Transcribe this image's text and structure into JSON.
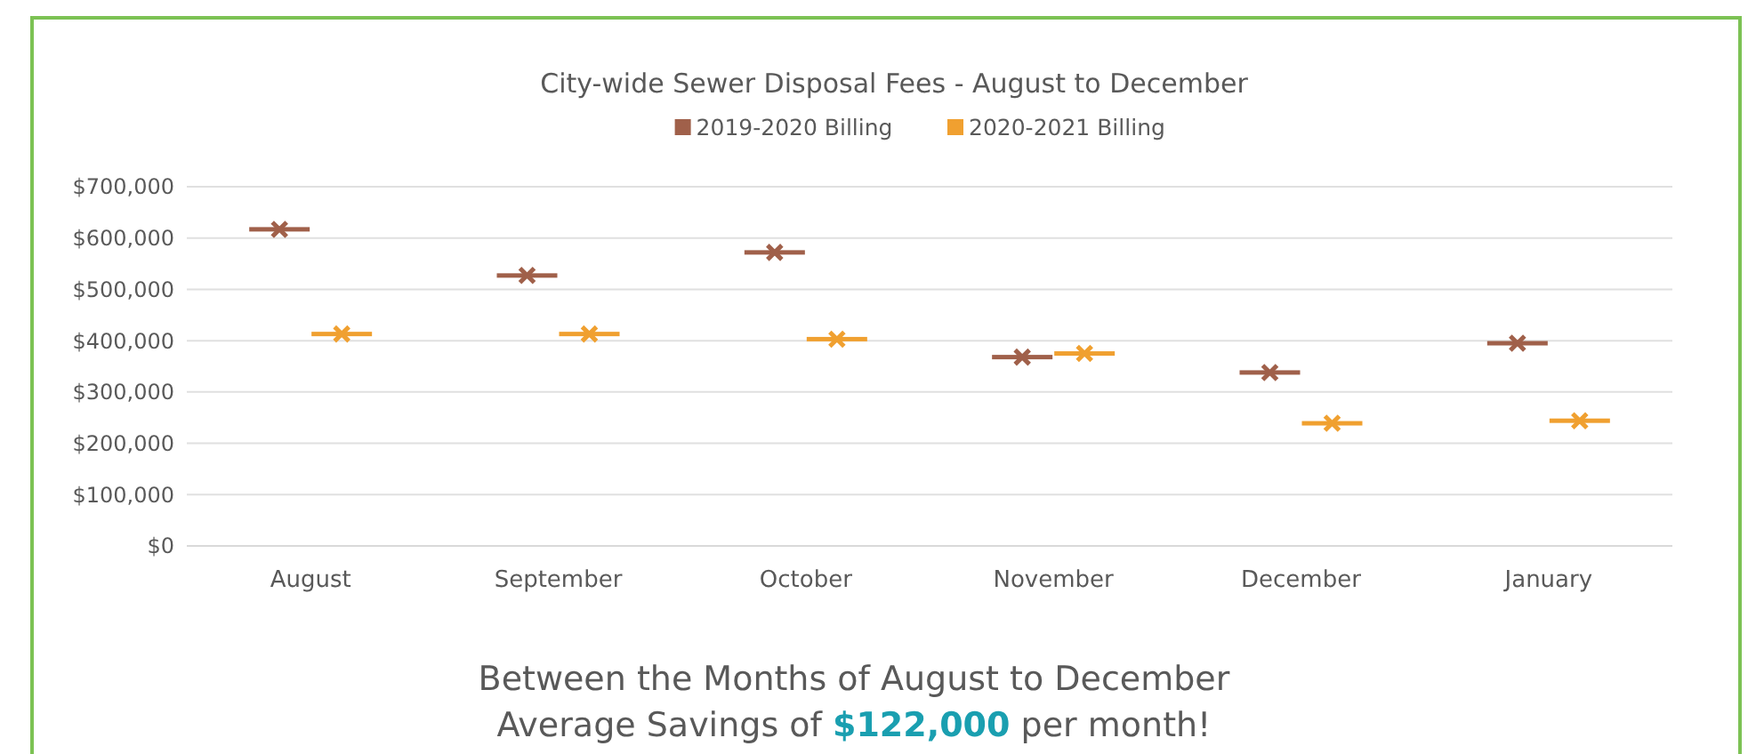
{
  "chart_data": {
    "type": "scatter",
    "title": "City-wide Sewer Disposal Fees - August to December",
    "categories": [
      "August",
      "September",
      "October",
      "November",
      "December",
      "January"
    ],
    "series": [
      {
        "name": "2019-2020 Billing",
        "color": "#a0604a",
        "values": [
          617000,
          527000,
          572000,
          368000,
          338000,
          395000
        ]
      },
      {
        "name": "2020-2021 Billing",
        "color": "#f0a030",
        "values": [
          413000,
          413000,
          403000,
          375000,
          239000,
          244000
        ]
      }
    ],
    "ylim": [
      0,
      700000
    ],
    "yticks": [
      {
        "value": 0,
        "label": "$0"
      },
      {
        "value": 100000,
        "label": "$100,000"
      },
      {
        "value": 200000,
        "label": "$200,000"
      },
      {
        "value": 300000,
        "label": "$300,000"
      },
      {
        "value": 400000,
        "label": "$400,000"
      },
      {
        "value": 500000,
        "label": "$500,000"
      },
      {
        "value": 600000,
        "label": "$600,000"
      },
      {
        "value": 700000,
        "label": "$700,000"
      }
    ],
    "grid": "y",
    "legend": "top",
    "marker": "cross",
    "annotations": [
      "Between the Months of August to December",
      "Average Savings of $122,000 per month!"
    ]
  }
}
